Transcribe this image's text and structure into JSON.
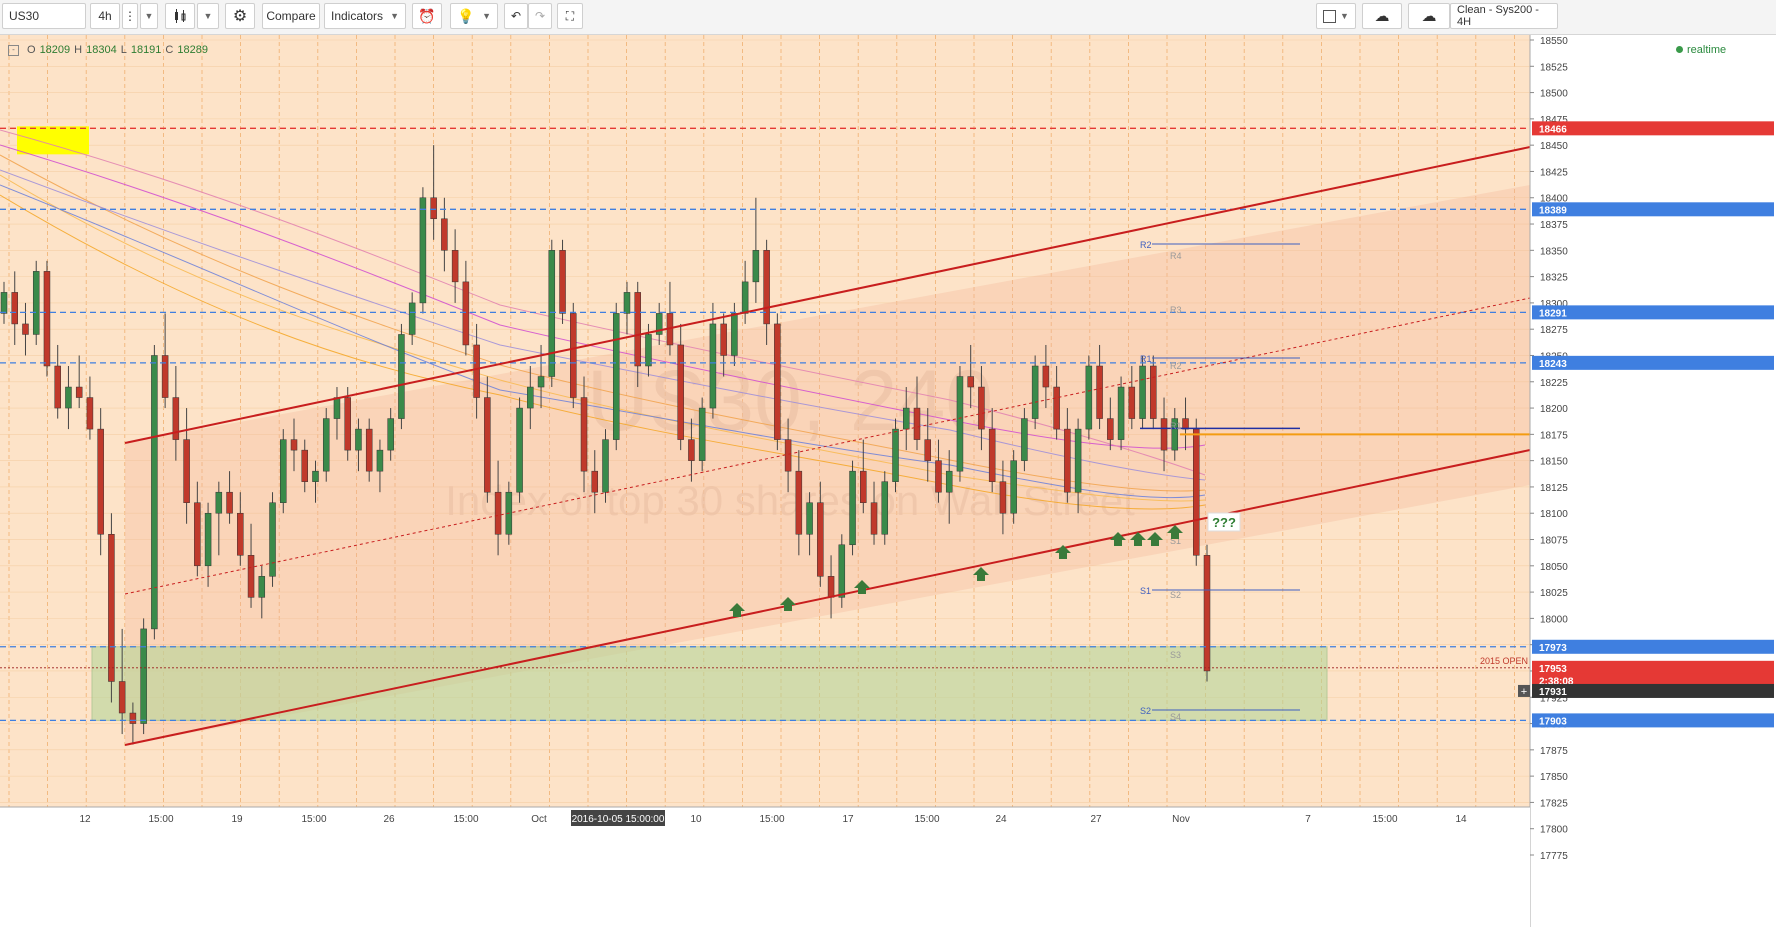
{
  "toolbar": {
    "symbol": "US30",
    "interval": "4h",
    "compare_label": "Compare",
    "indicators_label": "Indicators",
    "layout_label": "Clean - Sys200 - 4H"
  },
  "legend": {
    "o_label": "O",
    "o": "18209",
    "h_label": "H",
    "h": "18304",
    "l_label": "L",
    "l": "18191",
    "c_label": "C",
    "c": "18289",
    "realtime": "realtime"
  },
  "watermark": {
    "symbol": "US30, 240",
    "description": "Index of top 30 shares on Wall Street"
  },
  "price_axis": {
    "ticks": [
      "18550",
      "18525",
      "18500",
      "18475",
      "18450",
      "18425",
      "18400",
      "18375",
      "18350",
      "18325",
      "18300",
      "18275",
      "18250",
      "18225",
      "18200",
      "18175",
      "18150",
      "18125",
      "18100",
      "18075",
      "18050",
      "18025",
      "18000",
      "17975",
      "17950",
      "17925",
      "17900",
      "17875",
      "17850",
      "17825",
      "17800",
      "17775"
    ],
    "markers": [
      {
        "label": "18466",
        "color": "#e53935"
      },
      {
        "label": "18389",
        "color": "#3f7fe0"
      },
      {
        "label": "18291",
        "color": "#3f7fe0"
      },
      {
        "label": "18243",
        "color": "#3f7fe0"
      },
      {
        "label": "17973",
        "color": "#3f7fe0"
      },
      {
        "label": "17953",
        "color": "#e53935"
      },
      {
        "label": "2:38:08",
        "color": "#e53935"
      },
      {
        "label": "17931",
        "color": "#333333"
      },
      {
        "label": "17903",
        "color": "#3f7fe0"
      }
    ]
  },
  "time_axis": {
    "labels": [
      "12",
      "15:00",
      "19",
      "15:00",
      "26",
      "15:00",
      "Oct",
      "10",
      "15:00",
      "17",
      "15:00",
      "24",
      "27",
      "Nov",
      "7",
      "15:00",
      "14"
    ],
    "crosshair_label": "2016-10-05 15:00:00"
  },
  "annotations": {
    "question": "???",
    "open_2015": "2015 OPEN",
    "pivots": [
      "R2",
      "R4",
      "R3",
      "R1",
      "R2",
      "R1",
      "S1",
      "S1",
      "S2",
      "S3",
      "S2",
      "S4"
    ]
  },
  "chart_data": {
    "type": "candlestick",
    "symbol": "US30",
    "interval": "4h",
    "ylim": [
      17750,
      18575
    ],
    "horizontal_levels": [
      {
        "value": 18466,
        "color": "#e53935",
        "style": "dashed"
      },
      {
        "value": 18389,
        "color": "#3f7fe0",
        "style": "dashed"
      },
      {
        "value": 18291,
        "color": "#3f7fe0",
        "style": "dashed"
      },
      {
        "value": 18243,
        "color": "#3f7fe0",
        "style": "dashed"
      },
      {
        "value": 17973,
        "color": "#3f7fe0",
        "style": "dashed"
      },
      {
        "value": 17903,
        "color": "#3f7fe0",
        "style": "dashed"
      },
      {
        "value": 18175,
        "color": "#f39c12",
        "style": "solid"
      }
    ],
    "candles": [
      [
        18290,
        18320,
        18280,
        18310
      ],
      [
        18310,
        18330,
        18260,
        18280
      ],
      [
        18280,
        18300,
        18250,
        18270
      ],
      [
        18270,
        18340,
        18260,
        18330
      ],
      [
        18330,
        18340,
        18230,
        18240
      ],
      [
        18240,
        18260,
        18190,
        18200
      ],
      [
        18200,
        18240,
        18180,
        18220
      ],
      [
        18220,
        18250,
        18200,
        18210
      ],
      [
        18210,
        18230,
        18170,
        18180
      ],
      [
        18180,
        18200,
        18060,
        18080
      ],
      [
        18080,
        18100,
        17920,
        17940
      ],
      [
        17940,
        17990,
        17890,
        17910
      ],
      [
        17910,
        17920,
        17880,
        17900
      ],
      [
        17900,
        18000,
        17890,
        17990
      ],
      [
        17990,
        18260,
        17980,
        18250
      ],
      [
        18250,
        18290,
        18200,
        18210
      ],
      [
        18210,
        18240,
        18150,
        18170
      ],
      [
        18170,
        18200,
        18090,
        18110
      ],
      [
        18110,
        18130,
        18040,
        18050
      ],
      [
        18050,
        18110,
        18030,
        18100
      ],
      [
        18100,
        18130,
        18060,
        18120
      ],
      [
        18120,
        18140,
        18090,
        18100
      ],
      [
        18100,
        18120,
        18050,
        18060
      ],
      [
        18060,
        18090,
        18010,
        18020
      ],
      [
        18020,
        18050,
        18000,
        18040
      ],
      [
        18040,
        18120,
        18030,
        18110
      ],
      [
        18110,
        18180,
        18100,
        18170
      ],
      [
        18170,
        18190,
        18140,
        18160
      ],
      [
        18160,
        18170,
        18120,
        18130
      ],
      [
        18130,
        18150,
        18110,
        18140
      ],
      [
        18140,
        18200,
        18130,
        18190
      ],
      [
        18190,
        18220,
        18170,
        18210
      ],
      [
        18210,
        18220,
        18150,
        18160
      ],
      [
        18160,
        18190,
        18140,
        18180
      ],
      [
        18180,
        18190,
        18130,
        18140
      ],
      [
        18140,
        18170,
        18120,
        18160
      ],
      [
        18160,
        18200,
        18150,
        18190
      ],
      [
        18190,
        18280,
        18180,
        18270
      ],
      [
        18270,
        18310,
        18260,
        18300
      ],
      [
        18300,
        18410,
        18290,
        18400
      ],
      [
        18400,
        18450,
        18360,
        18380
      ],
      [
        18380,
        18400,
        18330,
        18350
      ],
      [
        18350,
        18370,
        18300,
        18320
      ],
      [
        18320,
        18340,
        18250,
        18260
      ],
      [
        18260,
        18280,
        18190,
        18210
      ],
      [
        18210,
        18230,
        18110,
        18120
      ],
      [
        18120,
        18150,
        18060,
        18080
      ],
      [
        18080,
        18130,
        18070,
        18120
      ],
      [
        18120,
        18210,
        18110,
        18200
      ],
      [
        18200,
        18240,
        18180,
        18220
      ],
      [
        18220,
        18260,
        18200,
        18230
      ],
      [
        18230,
        18360,
        18220,
        18350
      ],
      [
        18350,
        18360,
        18280,
        18290
      ],
      [
        18290,
        18300,
        18200,
        18210
      ],
      [
        18210,
        18230,
        18120,
        18140
      ],
      [
        18140,
        18160,
        18100,
        18120
      ],
      [
        18120,
        18180,
        18110,
        18170
      ],
      [
        18170,
        18300,
        18160,
        18290
      ],
      [
        18290,
        18320,
        18270,
        18310
      ],
      [
        18310,
        18320,
        18220,
        18240
      ],
      [
        18240,
        18280,
        18230,
        18270
      ],
      [
        18270,
        18300,
        18260,
        18290
      ],
      [
        18290,
        18320,
        18250,
        18260
      ],
      [
        18260,
        18280,
        18160,
        18170
      ],
      [
        18170,
        18190,
        18130,
        18150
      ],
      [
        18150,
        18210,
        18140,
        18200
      ],
      [
        18200,
        18300,
        18190,
        18280
      ],
      [
        18280,
        18290,
        18230,
        18250
      ],
      [
        18250,
        18300,
        18240,
        18290
      ],
      [
        18290,
        18340,
        18280,
        18320
      ],
      [
        18320,
        18400,
        18300,
        18350
      ],
      [
        18350,
        18360,
        18260,
        18280
      ],
      [
        18280,
        18290,
        18160,
        18170
      ],
      [
        18170,
        18190,
        18120,
        18140
      ],
      [
        18140,
        18160,
        18060,
        18080
      ],
      [
        18080,
        18120,
        18060,
        18110
      ],
      [
        18110,
        18130,
        18030,
        18040
      ],
      [
        18040,
        18060,
        18000,
        18020
      ],
      [
        18020,
        18080,
        18010,
        18070
      ],
      [
        18070,
        18150,
        18060,
        18140
      ],
      [
        18140,
        18170,
        18100,
        18110
      ],
      [
        18110,
        18130,
        18070,
        18080
      ],
      [
        18080,
        18140,
        18070,
        18130
      ],
      [
        18130,
        18190,
        18120,
        18180
      ],
      [
        18180,
        18220,
        18160,
        18200
      ],
      [
        18200,
        18230,
        18160,
        18170
      ],
      [
        18170,
        18200,
        18130,
        18150
      ],
      [
        18150,
        18170,
        18110,
        18120
      ],
      [
        18120,
        18160,
        18090,
        18140
      ],
      [
        18140,
        18240,
        18130,
        18230
      ],
      [
        18230,
        18260,
        18200,
        18220
      ],
      [
        18220,
        18240,
        18160,
        18180
      ],
      [
        18180,
        18200,
        18120,
        18130
      ],
      [
        18130,
        18150,
        18080,
        18100
      ],
      [
        18100,
        18160,
        18090,
        18150
      ],
      [
        18150,
        18200,
        18140,
        18190
      ],
      [
        18190,
        18250,
        18180,
        18240
      ],
      [
        18240,
        18260,
        18200,
        18220
      ],
      [
        18220,
        18240,
        18170,
        18180
      ],
      [
        18180,
        18200,
        18110,
        18120
      ],
      [
        18120,
        18190,
        18100,
        18180
      ],
      [
        18180,
        18250,
        18170,
        18240
      ],
      [
        18240,
        18260,
        18180,
        18190
      ],
      [
        18190,
        18210,
        18160,
        18170
      ],
      [
        18170,
        18230,
        18160,
        18220
      ],
      [
        18220,
        18240,
        18180,
        18190
      ],
      [
        18190,
        18250,
        18180,
        18240
      ],
      [
        18240,
        18250,
        18180,
        18190
      ],
      [
        18190,
        18210,
        18140,
        18160
      ],
      [
        18160,
        18200,
        18150,
        18190
      ],
      [
        18190,
        18210,
        18160,
        18180
      ],
      [
        18180,
        18190,
        18050,
        18060
      ],
      [
        18060,
        18070,
        17940,
        17950
      ]
    ]
  }
}
